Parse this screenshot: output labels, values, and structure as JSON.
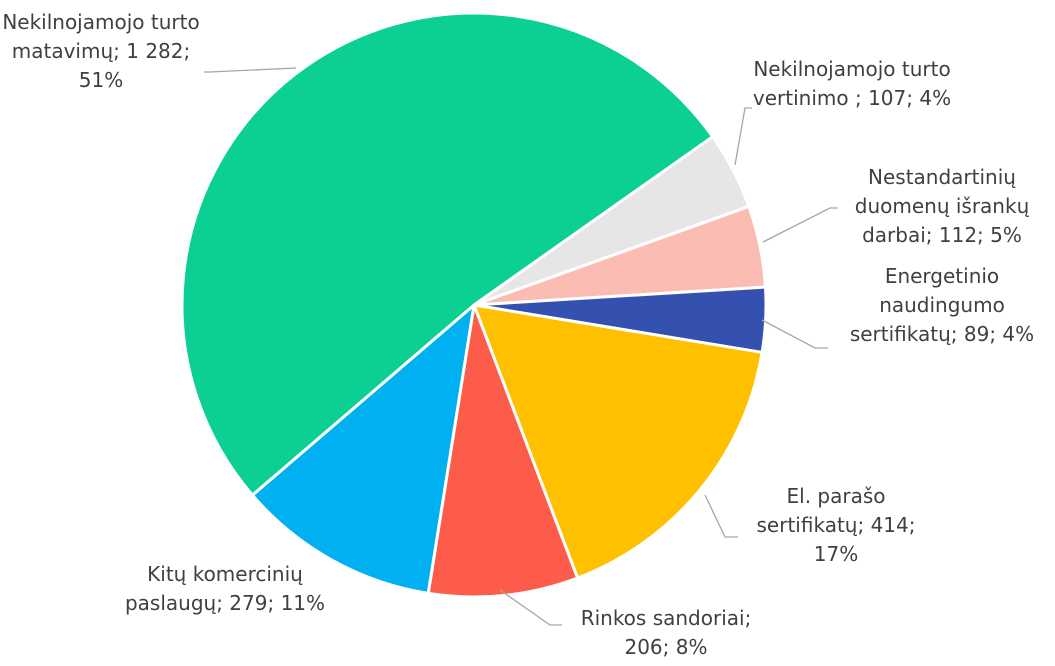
{
  "chart_data": {
    "type": "pie",
    "categories": [
      "Nekilnojamojo turto vertinimo ;",
      "Nestandartinių duomenų išrankų darbai;",
      "Energetinio naudingumo sertifikatų;",
      "El. parašo sertifikatų;",
      "Rinkos sandoriai;",
      "Kitų komercinių paslaugų;",
      "Nekilnojamojo turto matavimų;"
    ],
    "values": [
      107,
      112,
      89,
      414,
      206,
      279,
      1282
    ],
    "value_labels": [
      "107;",
      "112;",
      "89;",
      "414;",
      "206;",
      "279;",
      "1 282;"
    ],
    "percents": [
      4,
      5,
      4,
      17,
      8,
      11,
      51
    ],
    "percent_labels": [
      "4%",
      "5%",
      "4%",
      "17%",
      "8%",
      "11%",
      "51%"
    ],
    "colors": [
      "#e6e6e6",
      "#fbbcb3",
      "#3551b0",
      "#ffc000",
      "#fe5c4a",
      "#00b0f0",
      "#0ccf93"
    ]
  }
}
